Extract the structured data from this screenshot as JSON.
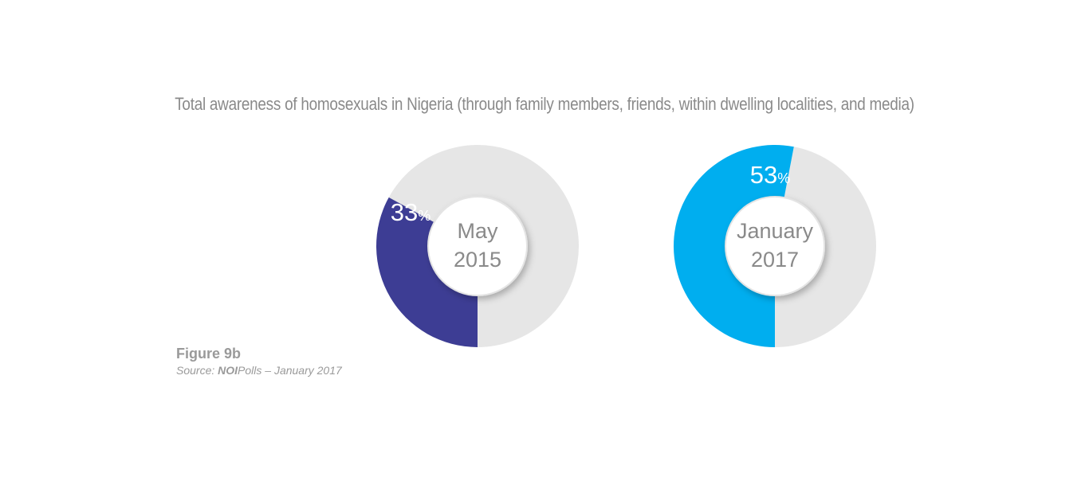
{
  "chart_data": {
    "type": "pie",
    "title": "Total awareness of homosexuals in Nigeria (through family members, friends, within dwelling localities, and media)",
    "charts": [
      {
        "center_label_line1": "May",
        "center_label_line2": "2015",
        "value": 33,
        "value_label": "33",
        "percent_sign": "%",
        "color": "#3d3d94",
        "remainder_color": "#e6e6e6"
      },
      {
        "center_label_line1": "January",
        "center_label_line2": "2017",
        "value": 53,
        "value_label": "53",
        "percent_sign": "%",
        "color": "#00aeef",
        "remainder_color": "#e6e6e6"
      }
    ]
  },
  "caption": {
    "figure": "Figure 9b",
    "source_prefix": "Source: ",
    "source_brand": "NOI",
    "source_rest": "Polls – January 2017"
  }
}
